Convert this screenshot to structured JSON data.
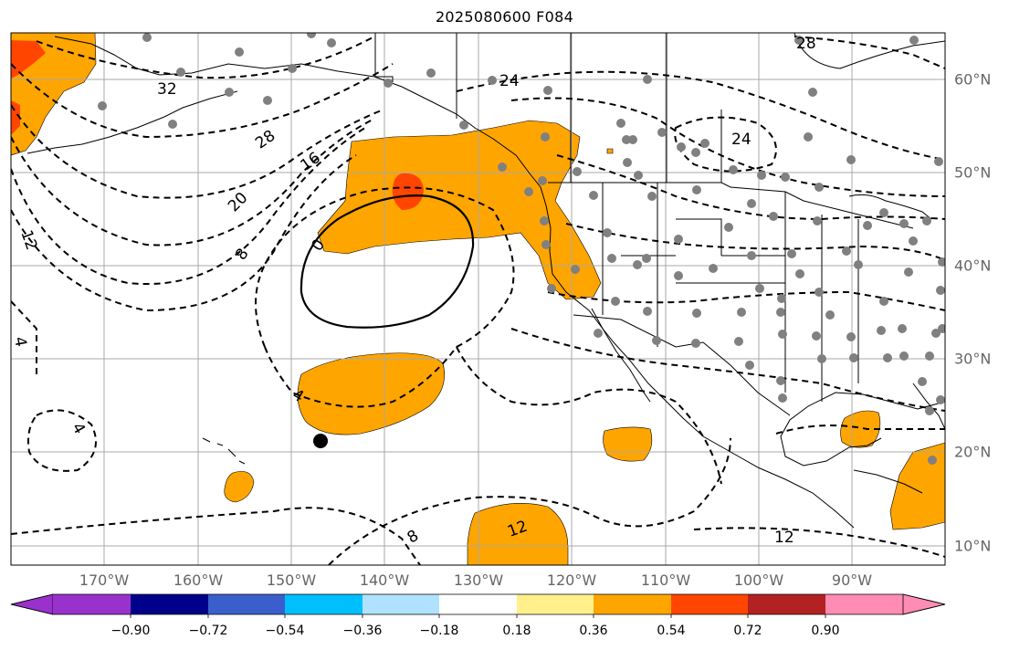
{
  "title": "2025080600 F084",
  "map": {
    "lon_range": [
      -180,
      -80
    ],
    "lat_range": [
      8,
      65
    ],
    "gridlines": true,
    "lon_labels": [
      "170°W",
      "160°W",
      "150°W",
      "140°W",
      "130°W",
      "120°W",
      "110°W",
      "100°W",
      "90°W"
    ],
    "lat_labels": [
      "60°N",
      "50°N",
      "40°N",
      "30°N",
      "20°N",
      "10°N"
    ],
    "contour_labels": [
      "32",
      "28",
      "24",
      "24",
      "28",
      "20",
      "16",
      "12",
      "8",
      "4",
      "4",
      "4",
      "8",
      "12",
      "12",
      "0"
    ],
    "colors": {
      "fill_036": "#ffa500",
      "fill_054": "#ff4500",
      "contour": "#000000",
      "station_dot": "#808080",
      "grid": "#a9a9a9"
    }
  },
  "colorbar": {
    "ticks": [
      "−0.90",
      "−0.72",
      "−0.54",
      "−0.36",
      "−0.18",
      "0.18",
      "0.36",
      "0.54",
      "0.72",
      "0.90"
    ],
    "colors": [
      "#9932cc",
      "#00008b",
      "#3a5fcd",
      "#00bfff",
      "#b0e2ff",
      "#ffffff",
      "#fff08c",
      "#ffa500",
      "#ff4500",
      "#b22222",
      "#ff8cb4",
      "#ff69b4"
    ]
  }
}
